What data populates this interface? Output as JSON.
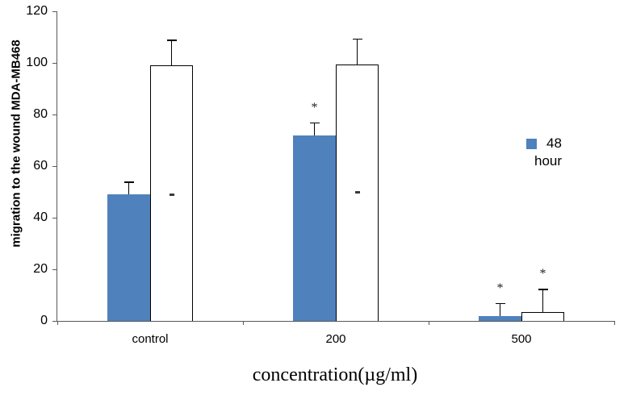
{
  "chart_data": {
    "type": "bar",
    "title": "",
    "xlabel": "concentration(µg/ml)",
    "ylabel": "migration to the wound MDA-MB468",
    "categories": [
      "control",
      "200",
      "500"
    ],
    "ylim": [
      0,
      120
    ],
    "yticks": [
      0,
      20,
      40,
      60,
      80,
      100,
      120
    ],
    "grid": false,
    "legend_position": "center-right",
    "axis_color": "#595959",
    "series": [
      {
        "name": "48 hour",
        "color": "#4f81bd",
        "border": "",
        "values": [
          49,
          72,
          2
        ],
        "error_up": [
          5,
          5,
          5
        ],
        "annotations": [
          "",
          "*",
          "*"
        ]
      },
      {
        "name": "unlabeled-white-series",
        "color": "#ffffff",
        "border": "#000000",
        "values": [
          99,
          99.5,
          3.5
        ],
        "error_up": [
          10,
          10,
          9
        ],
        "annotations": [
          "",
          "",
          "*"
        ],
        "inner_marks": [
          49,
          50,
          null
        ]
      }
    ],
    "legend": {
      "swatch_color": "#4f81bd",
      "line1": "48",
      "line2": "hour"
    }
  }
}
